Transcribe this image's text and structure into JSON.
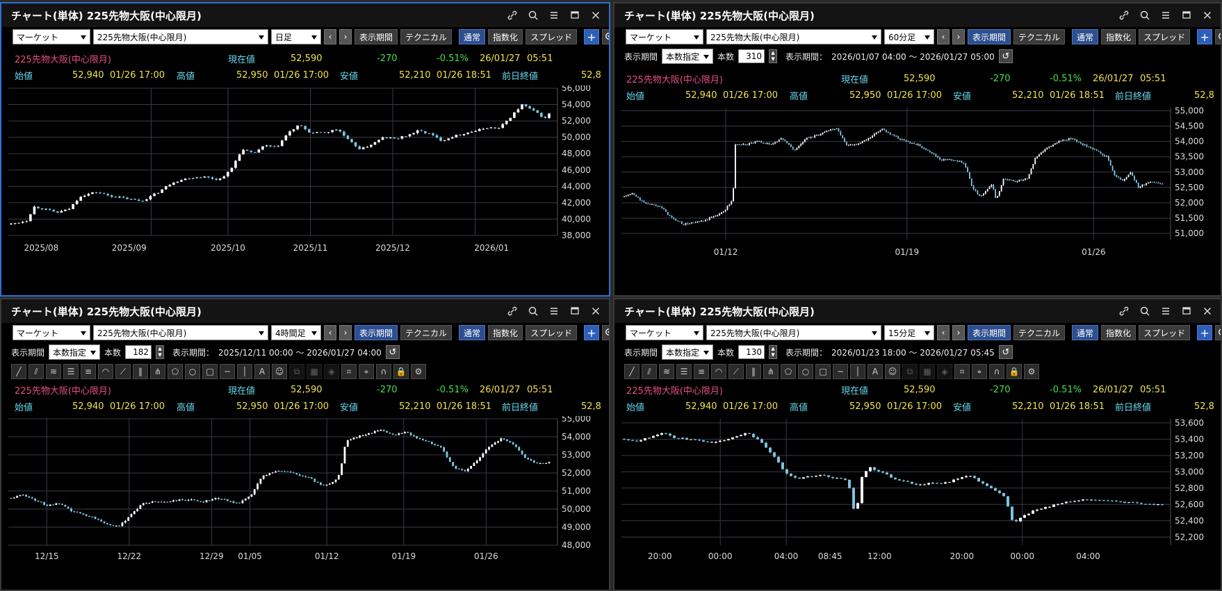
{
  "panels": [
    {
      "title": "チャート(単体) 225先物大阪(中心限月)",
      "toolbar": {
        "market": "マーケット",
        "symbol": "225先物大阪(中心限月)",
        "interval": "日足",
        "period_btn": "表示期間",
        "technical": "テクニカル",
        "normal": "通常",
        "index": "指数化",
        "spread": "スプレッド"
      },
      "quote": {
        "name": "225先物大阪(中心限月)",
        "current_label": "現在値",
        "current": "52,590",
        "change": "-270",
        "change_pct": "-0.51%",
        "date": "26/01/27",
        "time": "05:51"
      },
      "ohlc": {
        "open_label": "始値",
        "open": "52,940",
        "open_dt": "01/26 17:00",
        "high_label": "高値",
        "high": "52,950",
        "high_dt": "01/26 17:00",
        "low_label": "安値",
        "low": "52,210",
        "low_dt": "01/26 18:51",
        "prev_label": "前日終値",
        "prev": "52,8"
      },
      "chart_data": {
        "type": "candlestick",
        "y_ticks": [
          "56,000",
          "54,000",
          "52,000",
          "50,000",
          "48,000",
          "46,000",
          "44,000",
          "42,000",
          "40,000",
          "38,000"
        ],
        "ylim": [
          38000,
          56000
        ],
        "x_ticks": [
          "2025/08",
          "2025/09",
          "2025/10",
          "2025/11",
          "2025/12",
          "2026/01"
        ],
        "path": [
          [
            0,
            39400
          ],
          [
            4,
            39800
          ],
          [
            6,
            41500
          ],
          [
            8,
            41300
          ],
          [
            12,
            40800
          ],
          [
            15,
            41200
          ],
          [
            18,
            42800
          ],
          [
            22,
            43300
          ],
          [
            26,
            42800
          ],
          [
            30,
            42500
          ],
          [
            34,
            42200
          ],
          [
            38,
            43200
          ],
          [
            42,
            44500
          ],
          [
            46,
            45000
          ],
          [
            50,
            45200
          ],
          [
            54,
            44800
          ],
          [
            57,
            45900
          ],
          [
            60,
            48500
          ],
          [
            63,
            48000
          ],
          [
            66,
            49000
          ],
          [
            69,
            48700
          ],
          [
            72,
            50500
          ],
          [
            75,
            51500
          ],
          [
            78,
            50500
          ],
          [
            82,
            50600
          ],
          [
            85,
            51000
          ],
          [
            88,
            49500
          ],
          [
            91,
            48500
          ],
          [
            94,
            49200
          ],
          [
            97,
            50000
          ],
          [
            100,
            49800
          ],
          [
            103,
            50200
          ],
          [
            106,
            50800
          ],
          [
            109,
            50400
          ],
          [
            112,
            49600
          ],
          [
            115,
            50100
          ],
          [
            118,
            50500
          ],
          [
            121,
            50800
          ],
          [
            124,
            51200
          ],
          [
            127,
            51100
          ],
          [
            130,
            52500
          ],
          [
            133,
            54000
          ],
          [
            136,
            53200
          ],
          [
            139,
            52300
          ],
          [
            140,
            52900
          ]
        ]
      }
    },
    {
      "title": "チャート(単体) 225先物大阪(中心限月)",
      "toolbar": {
        "market": "マーケット",
        "symbol": "225先物大阪(中心限月)",
        "interval": "60分足",
        "period_btn": "表示期間",
        "technical": "テクニカル",
        "normal": "通常",
        "index": "指数化",
        "spread": "スプレッド"
      },
      "period": {
        "label": "表示期間",
        "mode": "本数指定",
        "count_label": "本数",
        "count": "310",
        "range_label": "表示期間：",
        "range": "2026/01/07 04:00 ～ 2026/01/27 05:00"
      },
      "quote": {
        "name": "225先物大阪(中心限月)",
        "current_label": "現在値",
        "current": "52,590",
        "change": "-270",
        "change_pct": "-0.51%",
        "date": "26/01/27",
        "time": "05:51"
      },
      "ohlc": {
        "open_label": "始値",
        "open": "52,940",
        "open_dt": "01/26 17:00",
        "high_label": "高値",
        "high": "52,950",
        "high_dt": "01/26 17:00",
        "low_label": "安値",
        "low": "52,210",
        "low_dt": "01/26 18:51",
        "prev_label": "前日終値",
        "prev": "52,8"
      },
      "chart_data": {
        "type": "candlestick",
        "y_ticks": [
          "55,000",
          "54,500",
          "54,000",
          "53,500",
          "53,000",
          "52,500",
          "52,000",
          "51,500",
          "51,000"
        ],
        "ylim": [
          50800,
          55100
        ],
        "x_ticks": [
          "01/12",
          "01/19",
          "01/26"
        ],
        "path": [
          [
            0,
            52200
          ],
          [
            4,
            52300
          ],
          [
            10,
            52000
          ],
          [
            18,
            51900
          ],
          [
            24,
            51500
          ],
          [
            30,
            51300
          ],
          [
            40,
            51400
          ],
          [
            50,
            51700
          ],
          [
            55,
            52100
          ],
          [
            56,
            53900
          ],
          [
            62,
            53900
          ],
          [
            68,
            54000
          ],
          [
            74,
            53900
          ],
          [
            80,
            54100
          ],
          [
            86,
            53700
          ],
          [
            92,
            54100
          ],
          [
            98,
            54200
          ],
          [
            104,
            54400
          ],
          [
            108,
            54400
          ],
          [
            112,
            53900
          ],
          [
            118,
            53900
          ],
          [
            124,
            54100
          ],
          [
            130,
            54400
          ],
          [
            136,
            54200
          ],
          [
            142,
            54000
          ],
          [
            148,
            53900
          ],
          [
            154,
            53700
          ],
          [
            160,
            53400
          ],
          [
            166,
            53400
          ],
          [
            172,
            53300
          ],
          [
            176,
            52500
          ],
          [
            180,
            52200
          ],
          [
            186,
            52600
          ],
          [
            188,
            52100
          ],
          [
            192,
            52800
          ],
          [
            198,
            52700
          ],
          [
            204,
            52800
          ],
          [
            208,
            53500
          ],
          [
            214,
            53800
          ],
          [
            220,
            54000
          ],
          [
            226,
            54100
          ],
          [
            232,
            53900
          ],
          [
            238,
            53700
          ],
          [
            244,
            53500
          ],
          [
            248,
            52900
          ],
          [
            252,
            52700
          ],
          [
            256,
            53000
          ],
          [
            260,
            52500
          ],
          [
            266,
            52700
          ],
          [
            272,
            52600
          ]
        ]
      }
    },
    {
      "title": "チャート(単体) 225先物大阪(中心限月)",
      "toolbar": {
        "market": "マーケット",
        "symbol": "225先物大阪(中心限月)",
        "interval": "4時間足",
        "period_btn": "表示期間",
        "technical": "テクニカル",
        "normal": "通常",
        "index": "指数化",
        "spread": "スプレッド"
      },
      "period": {
        "label": "表示期間",
        "mode": "本数指定",
        "count_label": "本数",
        "count": "182",
        "range_label": "表示期間：",
        "range": "2025/12/11 00:00 ～ 2026/01/27 04:00"
      },
      "quote": {
        "name": "225先物大阪(中心限月)",
        "current_label": "現在値",
        "current": "52,590",
        "change": "-270",
        "change_pct": "-0.51%",
        "date": "26/01/27",
        "time": "05:51"
      },
      "ohlc": {
        "open_label": "始値",
        "open": "52,940",
        "open_dt": "01/26 17:00",
        "high_label": "高値",
        "high": "52,950",
        "high_dt": "01/26 17:00",
        "low_label": "安値",
        "low": "52,210",
        "low_dt": "01/26 18:51",
        "prev_label": "前日終値",
        "prev": "52,8"
      },
      "chart_data": {
        "type": "candlestick",
        "y_ticks": [
          "55,000",
          "54,000",
          "53,000",
          "52,000",
          "51,000",
          "50,000",
          "49,000",
          "48,000"
        ],
        "ylim": [
          48000,
          55000
        ],
        "x_ticks": [
          "12/15",
          "12/22",
          "12/29",
          "01/05",
          "01/12",
          "01/19",
          "01/26"
        ],
        "path": [
          [
            0,
            50600
          ],
          [
            4,
            50800
          ],
          [
            8,
            50500
          ],
          [
            12,
            50200
          ],
          [
            16,
            50300
          ],
          [
            20,
            49900
          ],
          [
            24,
            49700
          ],
          [
            28,
            49500
          ],
          [
            32,
            49200
          ],
          [
            36,
            49000
          ],
          [
            40,
            49700
          ],
          [
            44,
            50300
          ],
          [
            48,
            50400
          ],
          [
            52,
            50400
          ],
          [
            56,
            50500
          ],
          [
            60,
            50500
          ],
          [
            64,
            50400
          ],
          [
            68,
            50600
          ],
          [
            72,
            50500
          ],
          [
            76,
            50300
          ],
          [
            80,
            50700
          ],
          [
            84,
            51800
          ],
          [
            88,
            52100
          ],
          [
            92,
            52100
          ],
          [
            96,
            51900
          ],
          [
            100,
            51700
          ],
          [
            104,
            51300
          ],
          [
            108,
            51500
          ],
          [
            110,
            52000
          ],
          [
            112,
            53800
          ],
          [
            116,
            54000
          ],
          [
            120,
            54200
          ],
          [
            124,
            54400
          ],
          [
            128,
            54100
          ],
          [
            132,
            54300
          ],
          [
            136,
            53900
          ],
          [
            140,
            53700
          ],
          [
            144,
            53400
          ],
          [
            148,
            52300
          ],
          [
            152,
            52100
          ],
          [
            156,
            52700
          ],
          [
            160,
            53500
          ],
          [
            164,
            53900
          ],
          [
            168,
            53600
          ],
          [
            172,
            52800
          ],
          [
            176,
            52500
          ],
          [
            180,
            52600
          ]
        ]
      }
    },
    {
      "title": "チャート(単体) 225先物大阪(中心限月)",
      "toolbar": {
        "market": "マーケット",
        "symbol": "225先物大阪(中心限月)",
        "interval": "15分足",
        "period_btn": "表示期間",
        "technical": "テクニカル",
        "normal": "通常",
        "index": "指数化",
        "spread": "スプレッド"
      },
      "period": {
        "label": "表示期間",
        "mode": "本数指定",
        "count_label": "本数",
        "count": "130",
        "range_label": "表示期間：",
        "range": "2026/01/23 18:00 ～ 2026/01/27 05:45"
      },
      "quote": {
        "name": "225先物大阪(中心限月)",
        "current_label": "現在値",
        "current": "52,590",
        "change": "-270",
        "change_pct": "-0.51%",
        "date": "26/01/27",
        "time": "05:51"
      },
      "ohlc": {
        "open_label": "始値",
        "open": "52,940",
        "open_dt": "01/26 17:00",
        "high_label": "高値",
        "high": "52,950",
        "high_dt": "01/26 17:00",
        "low_label": "安値",
        "low": "52,210",
        "low_dt": "01/26 18:51",
        "prev_label": "前日終値",
        "prev": "52,8"
      },
      "chart_data": {
        "type": "candlestick",
        "y_ticks": [
          "53,600",
          "53,400",
          "53,200",
          "53,000",
          "52,800",
          "52,600",
          "52,400",
          "52,200"
        ],
        "ylim": [
          52100,
          53650
        ],
        "x_ticks": [
          "20:00",
          "00:00",
          "04:00",
          "08:45",
          "12:00",
          "20:00",
          "00:00",
          "04:00"
        ],
        "path": [
          [
            0,
            53400
          ],
          [
            3,
            53380
          ],
          [
            6,
            53420
          ],
          [
            9,
            53480
          ],
          [
            12,
            53420
          ],
          [
            15,
            53400
          ],
          [
            18,
            53380
          ],
          [
            21,
            53360
          ],
          [
            24,
            53380
          ],
          [
            27,
            53440
          ],
          [
            30,
            53480
          ],
          [
            33,
            53360
          ],
          [
            36,
            53200
          ],
          [
            39,
            52980
          ],
          [
            42,
            52920
          ],
          [
            45,
            52940
          ],
          [
            48,
            52960
          ],
          [
            51,
            52920
          ],
          [
            54,
            52900
          ],
          [
            56,
            52400
          ],
          [
            57,
            52900
          ],
          [
            59,
            53060
          ],
          [
            62,
            53000
          ],
          [
            65,
            52920
          ],
          [
            68,
            52880
          ],
          [
            71,
            52840
          ],
          [
            74,
            52860
          ],
          [
            77,
            52860
          ],
          [
            80,
            52900
          ],
          [
            83,
            52960
          ],
          [
            86,
            52880
          ],
          [
            89,
            52780
          ],
          [
            92,
            52700
          ],
          [
            94,
            52360
          ],
          [
            97,
            52480
          ],
          [
            100,
            52540
          ],
          [
            103,
            52580
          ],
          [
            106,
            52620
          ],
          [
            109,
            52640
          ],
          [
            112,
            52660
          ],
          [
            115,
            52660
          ],
          [
            118,
            52640
          ],
          [
            121,
            52620
          ],
          [
            124,
            52620
          ],
          [
            127,
            52600
          ],
          [
            130,
            52590
          ]
        ]
      }
    }
  ],
  "icons": [
    "link-icon",
    "search-icon",
    "menu-icon",
    "maximize-icon",
    "close-icon"
  ],
  "colors": {
    "up": "#ffffff",
    "down": "#7ec8e3",
    "grid": "#3a3a4a",
    "active_border": "#2f6fd6"
  }
}
